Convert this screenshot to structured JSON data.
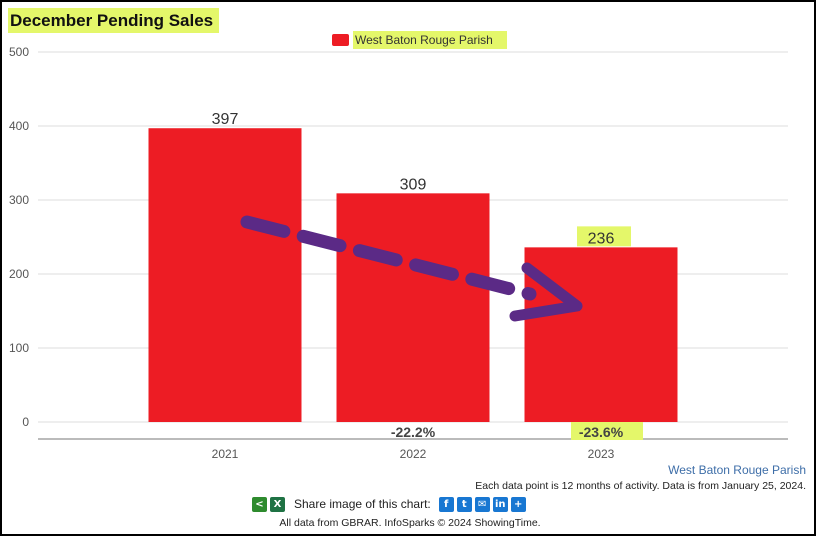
{
  "chart_data": {
    "type": "bar",
    "title": "December Pending Sales",
    "categories": [
      "2021",
      "2022",
      "2023"
    ],
    "series": [
      {
        "name": "West Baton Rouge Parish",
        "values": [
          397,
          309,
          236
        ]
      }
    ],
    "value_labels": [
      "397",
      "309",
      "236"
    ],
    "change_labels": [
      "",
      "-22.2%",
      "-23.6%"
    ],
    "ylim": [
      0,
      500
    ],
    "yticks": [
      0,
      100,
      200,
      300,
      400,
      500
    ],
    "grid": true,
    "legend": "top-center",
    "bar_color": "#ed1c24",
    "highlight_color": "#e4f76a",
    "arrow_color": "#5b2a86",
    "annotation": "dashed trend arrow pointing downward from 2021 to 2023"
  },
  "footer": {
    "source_label": "West Baton Rouge Parish",
    "note": "Each data point is 12 months of activity. Data is from January 25, 2024.",
    "share_label": "Share image of this chart:",
    "credit": "All data from GBRAR. InfoSparks © 2024 ShowingTime."
  },
  "share_icons": [
    "share-icon",
    "excel-icon",
    "facebook-icon",
    "twitter-icon",
    "email-icon",
    "linkedin-icon",
    "plus-icon"
  ]
}
